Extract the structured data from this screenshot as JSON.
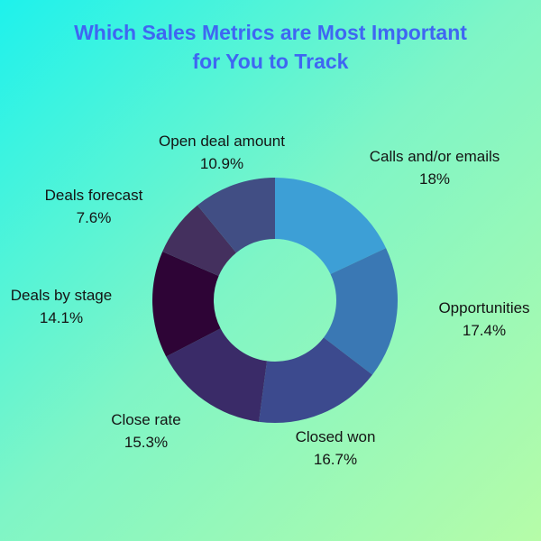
{
  "chart_data": {
    "type": "pie",
    "title_lines": [
      "Which Sales Metrics are Most Important",
      "for You to Track"
    ],
    "donut": true,
    "start_angle_deg": 0,
    "direction": "clockwise",
    "slices": [
      {
        "label": "Calls and/or emails",
        "value": 18,
        "value_label": "18%",
        "color": "#3d9fd6"
      },
      {
        "label": "Opportunities",
        "value": 17.4,
        "value_label": "17.4%",
        "color": "#3a78b4"
      },
      {
        "label": "Closed won",
        "value": 16.7,
        "value_label": "16.7%",
        "color": "#3c4a8e"
      },
      {
        "label": "Close rate",
        "value": 15.3,
        "value_label": "15.3%",
        "color": "#3a2b68"
      },
      {
        "label": "Deals by stage",
        "value": 14.1,
        "value_label": "14.1%",
        "color": "#2e0436"
      },
      {
        "label": "Deals forecast",
        "value": 7.6,
        "value_label": "7.6%",
        "color": "#44305e"
      },
      {
        "label": "Open deal amount",
        "value": 10.9,
        "value_label": "10.9%",
        "color": "#414e84"
      }
    ]
  }
}
